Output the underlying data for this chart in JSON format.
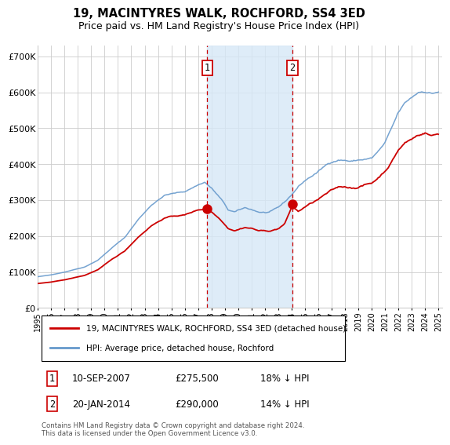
{
  "title": "19, MACINTYRES WALK, ROCHFORD, SS4 3ED",
  "subtitle": "Price paid vs. HM Land Registry's House Price Index (HPI)",
  "title_fontsize": 10.5,
  "subtitle_fontsize": 9,
  "ylabel_ticks": [
    "£0",
    "£100K",
    "£200K",
    "£300K",
    "£400K",
    "£500K",
    "£600K",
    "£700K"
  ],
  "ytick_vals": [
    0,
    100000,
    200000,
    300000,
    400000,
    500000,
    600000,
    700000
  ],
  "ylim": [
    0,
    730000
  ],
  "xlim_start": 1995.0,
  "xlim_end": 2025.3,
  "marker1_x": 2007.69,
  "marker1_y": 275500,
  "marker1_label": "1",
  "marker1_date": "10-SEP-2007",
  "marker1_price": "£275,500",
  "marker1_hpi": "18% ↓ HPI",
  "marker2_x": 2014.05,
  "marker2_y": 290000,
  "marker2_label": "2",
  "marker2_date": "20-JAN-2014",
  "marker2_price": "£290,000",
  "marker2_hpi": "14% ↓ HPI",
  "shade_color": "#d6e8f7",
  "shade_alpha": 0.8,
  "red_line_color": "#cc0000",
  "blue_line_color": "#6699cc",
  "grid_color": "#cccccc",
  "bg_color": "#ffffff",
  "legend_label_red": "19, MACINTYRES WALK, ROCHFORD, SS4 3ED (detached house)",
  "legend_label_blue": "HPI: Average price, detached house, Rochford",
  "footer": "Contains HM Land Registry data © Crown copyright and database right 2024.\nThis data is licensed under the Open Government Licence v3.0."
}
